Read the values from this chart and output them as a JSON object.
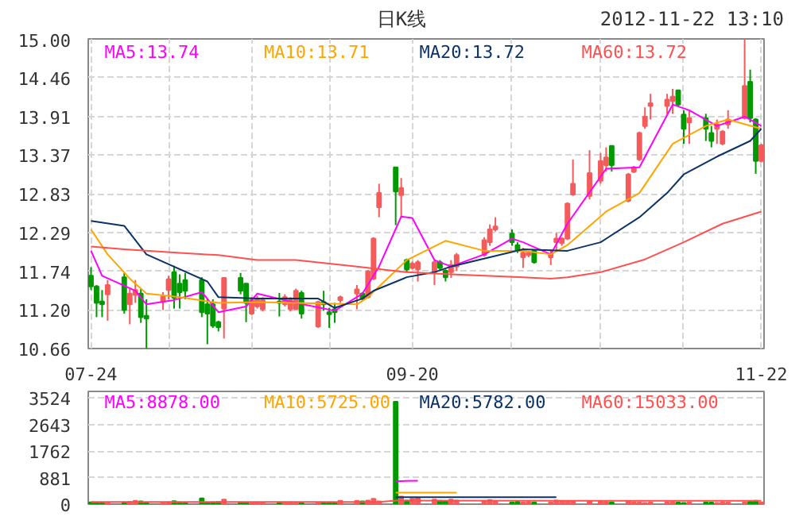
{
  "chart_data": [
    {
      "type": "candlestick",
      "title": "日K线",
      "subtitle": "2012-11-22 13:10",
      "x": [
        "2012-07-24",
        "2012-07-25",
        "2012-07-26",
        "2012-07-27",
        "2012-07-30",
        "2012-07-31",
        "2012-08-01",
        "2012-08-02",
        "2012-08-03",
        "2012-08-06",
        "2012-08-07",
        "2012-08-08",
        "2012-08-09",
        "2012-08-10",
        "2012-08-13",
        "2012-08-14",
        "2012-08-15",
        "2012-08-16",
        "2012-08-17",
        "2012-08-20",
        "2012-08-21",
        "2012-08-22",
        "2012-08-23",
        "2012-08-24",
        "2012-08-27",
        "2012-08-28",
        "2012-08-29",
        "2012-08-30",
        "2012-08-31",
        "2012-09-03",
        "2012-09-04",
        "2012-09-05",
        "2012-09-06",
        "2012-09-07",
        "2012-09-10",
        "2012-09-11",
        "2012-09-12",
        "2012-09-13",
        "2012-09-14",
        "2012-09-17",
        "2012-09-18",
        "2012-09-19",
        "2012-09-20",
        "2012-09-21",
        "2012-09-24",
        "2012-09-25",
        "2012-09-26",
        "2012-09-27",
        "2012-09-28",
        "2012-10-03",
        "2012-10-04",
        "2012-10-05",
        "2012-10-08",
        "2012-10-09",
        "2012-10-10",
        "2012-10-11",
        "2012-10-12",
        "2012-10-15",
        "2012-10-16",
        "2012-10-17",
        "2012-10-18",
        "2012-10-19",
        "2012-10-22",
        "2012-10-24",
        "2012-10-25",
        "2012-10-26",
        "2012-10-29",
        "2012-10-30",
        "2012-10-31",
        "2012-11-01",
        "2012-11-02",
        "2012-11-05",
        "2012-11-06",
        "2012-11-07",
        "2012-11-08",
        "2012-11-09",
        "2012-11-12",
        "2012-11-13",
        "2012-11-14",
        "2012-11-15",
        "2012-11-16",
        "2012-11-19",
        "2012-11-20",
        "2012-11-21",
        "2012-11-22"
      ],
      "ohlc": [
        [
          11.68,
          11.8,
          11.48,
          11.53
        ],
        [
          11.53,
          11.55,
          11.1,
          11.3
        ],
        [
          11.32,
          11.48,
          11.1,
          11.28
        ],
        [
          11.42,
          11.62,
          11.05,
          11.55
        ],
        [
          11.66,
          11.72,
          11.15,
          11.2
        ],
        [
          11.28,
          11.5,
          11.0,
          11.43
        ],
        [
          11.41,
          11.62,
          11.3,
          11.48
        ],
        [
          11.43,
          11.5,
          11.02,
          11.1
        ],
        [
          11.12,
          11.35,
          10.66,
          11.08
        ],
        [
          11.32,
          11.45,
          11.2,
          11.39
        ],
        [
          11.48,
          11.68,
          11.35,
          11.63
        ],
        [
          11.73,
          11.82,
          11.22,
          11.37
        ],
        [
          11.57,
          11.7,
          11.22,
          11.45
        ],
        [
          11.62,
          11.72,
          11.35,
          11.47
        ],
        [
          11.62,
          11.66,
          11.1,
          11.17
        ],
        [
          11.28,
          11.35,
          10.72,
          11.15
        ],
        [
          11.28,
          11.35,
          10.95,
          10.98
        ],
        [
          11.03,
          11.05,
          10.9,
          10.96
        ],
        [
          11.22,
          11.65,
          10.8,
          11.65
        ],
        [
          11.65,
          11.72,
          11.42,
          11.47
        ],
        [
          11.57,
          11.57,
          11.03,
          11.3
        ],
        [
          11.15,
          11.38,
          11.13,
          11.34
        ],
        [
          11.25,
          11.4,
          11.22,
          11.36
        ],
        [
          11.21,
          11.38,
          11.18,
          11.34
        ],
        [
          11.32,
          11.44,
          11.11,
          11.3
        ],
        [
          11.28,
          11.42,
          11.25,
          11.38
        ],
        [
          11.21,
          11.38,
          11.18,
          11.34
        ],
        [
          11.21,
          11.5,
          11.2,
          11.47
        ],
        [
          11.44,
          11.47,
          11.08,
          11.15
        ],
        [
          10.97,
          11.33,
          10.95,
          11.31
        ],
        [
          11.31,
          11.47,
          11.19,
          11.28
        ],
        [
          11.17,
          11.23,
          10.95,
          11.14
        ],
        [
          11.21,
          11.3,
          11.02,
          11.17
        ],
        [
          11.34,
          11.4,
          11.3,
          11.38
        ],
        [
          11.43,
          11.55,
          11.21,
          11.49
        ],
        [
          11.43,
          11.45,
          11.33,
          11.36
        ],
        [
          11.38,
          11.76,
          11.36,
          11.74
        ],
        [
          11.64,
          12.22,
          11.62,
          12.2
        ],
        [
          12.64,
          12.97,
          12.5,
          12.84
        ],
        [
          13.2,
          13.2,
          12.39,
          12.86
        ],
        [
          12.81,
          13.05,
          12.5,
          12.91
        ],
        [
          11.9,
          11.92,
          11.74,
          11.77
        ],
        [
          11.79,
          11.88,
          11.77,
          11.85
        ],
        [
          11.77,
          11.9,
          11.6,
          11.87
        ],
        [
          11.73,
          11.9,
          11.55,
          11.87
        ],
        [
          11.87,
          11.9,
          11.75,
          11.79
        ],
        [
          11.75,
          11.77,
          11.6,
          11.66
        ],
        [
          11.73,
          11.9,
          11.65,
          11.83
        ],
        [
          11.81,
          12.0,
          11.75,
          11.97
        ],
        [
          11.97,
          12.22,
          11.95,
          12.18
        ],
        [
          12.15,
          12.4,
          12.1,
          12.33
        ],
        [
          12.33,
          12.5,
          12.3,
          12.37
        ],
        [
          12.27,
          12.33,
          12.1,
          12.15
        ],
        [
          12.11,
          12.15,
          12.0,
          12.03
        ],
        [
          11.94,
          12.07,
          11.79,
          12.0
        ],
        [
          11.97,
          12.03,
          11.94,
          12.0
        ],
        [
          12.03,
          12.05,
          11.85,
          11.87
        ],
        [
          11.94,
          12.05,
          11.83,
          11.98
        ],
        [
          12.15,
          12.28,
          12.03,
          12.2
        ],
        [
          12.14,
          12.22,
          12.1,
          12.2
        ],
        [
          12.2,
          12.71,
          12.18,
          12.69
        ],
        [
          12.82,
          13.31,
          12.8,
          12.97
        ],
        [
          12.8,
          13.44,
          12.75,
          13.12
        ],
        [
          13.01,
          13.4,
          12.97,
          13.29
        ],
        [
          13.23,
          13.48,
          13.14,
          13.34
        ],
        [
          13.5,
          13.5,
          13.14,
          13.23
        ],
        [
          12.73,
          13.12,
          12.71,
          13.1
        ],
        [
          13.14,
          13.22,
          13.12,
          13.2
        ],
        [
          13.31,
          13.7,
          13.29,
          13.68
        ],
        [
          13.78,
          14.04,
          13.74,
          13.91
        ],
        [
          14.06,
          14.23,
          13.87,
          14.1
        ],
        [
          14.06,
          14.23,
          13.95,
          14.15
        ],
        [
          14.13,
          14.3,
          13.95,
          14.19
        ],
        [
          14.28,
          14.28,
          14.06,
          14.08
        ],
        [
          13.94,
          14.0,
          13.53,
          13.74
        ],
        [
          13.83,
          14.0,
          13.53,
          13.89
        ],
        [
          13.89,
          13.95,
          13.57,
          13.74
        ],
        [
          13.68,
          13.78,
          13.48,
          13.57
        ],
        [
          13.74,
          13.87,
          13.53,
          13.8
        ],
        [
          13.53,
          13.72,
          13.51,
          13.7
        ],
        [
          13.8,
          14.0,
          13.74,
          13.87
        ],
        [
          13.89,
          15.0,
          13.87,
          14.34
        ],
        [
          14.4,
          14.57,
          13.83,
          13.89
        ],
        [
          13.87,
          13.89,
          13.11,
          13.29
        ],
        [
          13.29,
          13.53,
          13.27,
          13.51
        ]
      ],
      "colors": [
        "#009900",
        "#009900",
        "#009900",
        "#f65b5b",
        "#009900",
        "#f65b5b",
        "#f65b5b",
        "#009900",
        "#009900",
        "#f65b5b",
        "#f65b5b",
        "#009900",
        "#009900",
        "#009900",
        "#009900",
        "#009900",
        "#009900",
        "#009900",
        "#f65b5b",
        "#009900",
        "#009900",
        "#f65b5b",
        "#f65b5b",
        "#f65b5b",
        "#009900",
        "#f65b5b",
        "#f65b5b",
        "#f65b5b",
        "#009900",
        "#f65b5b",
        "#009900",
        "#009900",
        "#009900",
        "#f65b5b",
        "#f65b5b",
        "#009900",
        "#f65b5b",
        "#f65b5b",
        "#f65b5b",
        "#009900",
        "#f65b5b",
        "#009900",
        "#f65b5b",
        "#f65b5b",
        "#f65b5b",
        "#009900",
        "#009900",
        "#f65b5b",
        "#f65b5b",
        "#f65b5b",
        "#f65b5b",
        "#f65b5b",
        "#009900",
        "#009900",
        "#f65b5b",
        "#f65b5b",
        "#009900",
        "#f65b5b",
        "#f65b5b",
        "#f65b5b",
        "#f65b5b",
        "#f65b5b",
        "#f65b5b",
        "#f65b5b",
        "#f65b5b",
        "#009900",
        "#f65b5b",
        "#f65b5b",
        "#f65b5b",
        "#f65b5b",
        "#f65b5b",
        "#f65b5b",
        "#f65b5b",
        "#009900",
        "#009900",
        "#f65b5b",
        "#009900",
        "#009900",
        "#f65b5b",
        "#f65b5b",
        "#f65b5b",
        "#f65b5b",
        "#009900",
        "#009900",
        "#f65b5b"
      ],
      "xlim": [
        "2012-07-23T12:00",
        "2012-11-22T12:00"
      ],
      "xticks": [
        {
          "value": "2012-07-24",
          "label": "07-24"
        },
        {
          "value": "2012-08-07",
          "label": null
        },
        {
          "value": "2012-08-22",
          "label": null
        },
        {
          "value": "2012-09-05",
          "label": null
        },
        {
          "value": "2012-09-20",
          "label": "09-20"
        },
        {
          "value": "2012-10-08",
          "label": null
        },
        {
          "value": "2012-10-24",
          "label": null
        },
        {
          "value": "2012-11-08",
          "label": null
        },
        {
          "value": "2012-11-22",
          "label": "11-22"
        }
      ],
      "ylim": [
        10.66,
        15.0
      ],
      "yticks": [
        10.66,
        {
          "value": 11.2,
          "label": "11.20"
        },
        11.74,
        12.29,
        12.83,
        13.37,
        13.91,
        14.46,
        {
          "value": 15.0,
          "label": "15.00"
        }
      ],
      "grid": true,
      "legend": "top",
      "series": [
        {
          "name": "MA5:13.74",
          "type": "line",
          "color": "#ff00ff",
          "x": [
            "2012-07-24",
            "2012-07-26",
            "2012-08-01",
            "2012-08-03",
            "2012-08-08",
            "2012-08-13",
            "2012-08-16",
            "2012-08-21",
            "2012-08-23",
            "2012-08-30",
            "2012-09-06",
            "2012-09-11",
            "2012-09-14",
            "2012-09-18",
            "2012-09-20",
            "2012-09-24",
            "2012-09-27",
            "2012-10-03",
            "2012-10-08",
            "2012-10-10",
            "2012-10-15",
            "2012-10-18",
            "2012-10-25",
            "2012-10-31",
            "2012-11-06",
            "2012-11-09",
            "2012-11-14",
            "2012-11-19",
            "2012-11-22"
          ],
          "values": [
            12.03,
            11.68,
            11.47,
            11.28,
            11.34,
            11.45,
            11.17,
            11.25,
            11.43,
            11.3,
            11.19,
            11.43,
            11.81,
            12.51,
            12.49,
            11.9,
            11.81,
            11.98,
            12.2,
            12.15,
            11.98,
            12.41,
            13.18,
            13.2,
            14.08,
            14.0,
            13.78,
            13.91,
            13.78
          ]
        },
        {
          "name": "MA10:13.71",
          "type": "line",
          "color": "#ffa500",
          "x": [
            "2012-07-24",
            "2012-07-27",
            "2012-07-31",
            "2012-08-03",
            "2012-08-09",
            "2012-08-16",
            "2012-08-23",
            "2012-08-30",
            "2012-09-10",
            "2012-09-12",
            "2012-09-19",
            "2012-09-26",
            "2012-10-03",
            "2012-10-10",
            "2012-10-15",
            "2012-10-18",
            "2012-10-25",
            "2012-10-31",
            "2012-11-06",
            "2012-11-12",
            "2012-11-16",
            "2012-11-22"
          ],
          "values": [
            12.33,
            11.98,
            11.64,
            11.43,
            11.38,
            11.3,
            11.31,
            11.3,
            11.28,
            11.38,
            11.9,
            12.17,
            12.03,
            12.03,
            11.98,
            12.11,
            12.58,
            12.84,
            13.53,
            13.78,
            13.87,
            13.74
          ]
        },
        {
          "name": "MA20:13.72",
          "type": "line",
          "color": "#0b3366",
          "x": [
            "2012-07-24",
            "2012-07-30",
            "2012-08-03",
            "2012-08-14",
            "2012-08-16",
            "2012-08-23",
            "2012-09-03",
            "2012-09-06",
            "2012-09-11",
            "2012-09-13",
            "2012-09-19",
            "2012-09-24",
            "2012-09-27",
            "2012-10-04",
            "2012-10-10",
            "2012-10-18",
            "2012-10-24",
            "2012-10-31",
            "2012-11-05",
            "2012-11-08",
            "2012-11-14",
            "2012-11-20",
            "2012-11-22"
          ],
          "values": [
            12.45,
            12.38,
            11.98,
            11.6,
            11.38,
            11.36,
            11.36,
            11.23,
            11.36,
            11.47,
            11.66,
            11.73,
            11.81,
            11.94,
            12.05,
            12.03,
            12.15,
            12.5,
            12.84,
            13.1,
            13.35,
            13.57,
            13.74
          ]
        },
        {
          "name": "MA60:13.72",
          "type": "line",
          "color": "#ff5050",
          "x": [
            "2012-07-24",
            "2012-07-30",
            "2012-08-09",
            "2012-08-16",
            "2012-08-23",
            "2012-08-30",
            "2012-09-10",
            "2012-09-19",
            "2012-09-27",
            "2012-10-10",
            "2012-10-15",
            "2012-10-18",
            "2012-10-24",
            "2012-11-01",
            "2012-11-08",
            "2012-11-15",
            "2012-11-22"
          ],
          "values": [
            12.09,
            12.05,
            12.0,
            11.97,
            11.9,
            11.9,
            11.81,
            11.73,
            11.7,
            11.66,
            11.64,
            11.66,
            11.73,
            11.91,
            12.15,
            12.41,
            12.58
          ]
        }
      ]
    },
    {
      "type": "bar",
      "x": [
        "2012-07-24",
        "2012-07-25",
        "2012-07-26",
        "2012-07-27",
        "2012-07-30",
        "2012-07-31",
        "2012-08-01",
        "2012-08-02",
        "2012-08-03",
        "2012-08-06",
        "2012-08-07",
        "2012-08-08",
        "2012-08-09",
        "2012-08-10",
        "2012-08-13",
        "2012-08-14",
        "2012-08-15",
        "2012-08-16",
        "2012-08-17",
        "2012-08-20",
        "2012-08-21",
        "2012-08-22",
        "2012-08-23",
        "2012-08-24",
        "2012-08-27",
        "2012-08-28",
        "2012-08-29",
        "2012-08-30",
        "2012-08-31",
        "2012-09-03",
        "2012-09-04",
        "2012-09-05",
        "2012-09-06",
        "2012-09-07",
        "2012-09-10",
        "2012-09-11",
        "2012-09-12",
        "2012-09-13",
        "2012-09-14",
        "2012-09-17",
        "2012-09-18",
        "2012-09-19",
        "2012-09-20",
        "2012-09-21",
        "2012-09-24",
        "2012-09-25",
        "2012-09-26",
        "2012-09-27",
        "2012-09-28",
        "2012-10-03",
        "2012-10-04",
        "2012-10-05",
        "2012-10-08",
        "2012-10-09",
        "2012-10-10",
        "2012-10-11",
        "2012-10-12",
        "2012-10-15",
        "2012-10-16",
        "2012-10-17",
        "2012-10-18",
        "2012-10-19",
        "2012-10-22",
        "2012-10-24",
        "2012-10-25",
        "2012-10-26",
        "2012-10-29",
        "2012-10-30",
        "2012-10-31",
        "2012-11-01",
        "2012-11-02",
        "2012-11-05",
        "2012-11-06",
        "2012-11-07",
        "2012-11-08",
        "2012-11-09",
        "2012-11-12",
        "2012-11-13",
        "2012-11-14",
        "2012-11-15",
        "2012-11-16",
        "2012-11-19",
        "2012-11-20",
        "2012-11-21",
        "2012-11-22"
      ],
      "values": [
        60,
        50,
        40,
        50,
        60,
        70,
        110,
        90,
        50,
        40,
        60,
        100,
        60,
        50,
        190,
        50,
        60,
        70,
        150,
        60,
        50,
        40,
        50,
        40,
        60,
        50,
        60,
        40,
        50,
        50,
        40,
        50,
        40,
        110,
        110,
        90,
        120,
        180,
        90,
        3400,
        250,
        120,
        180,
        200,
        150,
        110,
        100,
        150,
        120,
        100,
        140,
        80,
        60,
        80,
        60,
        70,
        60,
        60,
        120,
        80,
        100,
        80,
        100,
        90,
        70,
        60,
        80,
        60,
        50,
        40,
        50,
        60,
        70,
        50,
        40,
        60,
        60,
        50,
        40,
        60,
        50,
        60,
        80,
        110,
        60
      ],
      "colors": [
        "#009900",
        "#009900",
        "#009900",
        "#f65b5b",
        "#009900",
        "#f65b5b",
        "#f65b5b",
        "#009900",
        "#009900",
        "#f65b5b",
        "#f65b5b",
        "#009900",
        "#009900",
        "#009900",
        "#009900",
        "#009900",
        "#009900",
        "#009900",
        "#f65b5b",
        "#009900",
        "#009900",
        "#f65b5b",
        "#f65b5b",
        "#f65b5b",
        "#009900",
        "#f65b5b",
        "#f65b5b",
        "#f65b5b",
        "#009900",
        "#f65b5b",
        "#009900",
        "#009900",
        "#009900",
        "#f65b5b",
        "#f65b5b",
        "#009900",
        "#f65b5b",
        "#f65b5b",
        "#f65b5b",
        "#009900",
        "#f65b5b",
        "#009900",
        "#f65b5b",
        "#f65b5b",
        "#f65b5b",
        "#009900",
        "#009900",
        "#f65b5b",
        "#f65b5b",
        "#f65b5b",
        "#f65b5b",
        "#f65b5b",
        "#009900",
        "#009900",
        "#f65b5b",
        "#f65b5b",
        "#009900",
        "#f65b5b",
        "#f65b5b",
        "#f65b5b",
        "#f65b5b",
        "#f65b5b",
        "#f65b5b",
        "#f65b5b",
        "#f65b5b",
        "#009900",
        "#f65b5b",
        "#f65b5b",
        "#f65b5b",
        "#f65b5b",
        "#f65b5b",
        "#f65b5b",
        "#f65b5b",
        "#009900",
        "#009900",
        "#f65b5b",
        "#009900",
        "#009900",
        "#f65b5b",
        "#f65b5b",
        "#f65b5b",
        "#f65b5b",
        "#009900",
        "#009900",
        "#f65b5b"
      ],
      "xlim": [
        "2012-07-23T12:00",
        "2012-11-22T12:00"
      ],
      "ylim": [
        0,
        3740
      ],
      "yticks": [
        0,
        881,
        1762,
        2643,
        3524
      ],
      "tick_labels": "y",
      "grid": "y",
      "legend": "top",
      "series": [
        {
          "name": "MA5:8878.00",
          "type": "line",
          "color": "#ff00ff",
          "x": [
            "2012-09-17",
            "2012-09-21"
          ],
          "values": [
            760,
            780
          ]
        },
        {
          "name": "MA10:5725.00",
          "type": "line",
          "color": "#ffa500",
          "x": [
            "2012-09-17",
            "2012-09-28"
          ],
          "values": [
            380,
            380
          ]
        },
        {
          "name": "MA20:5782.00",
          "type": "line",
          "color": "#0b3366",
          "x": [
            "2012-09-17",
            "2012-10-16"
          ],
          "values": [
            230,
            230
          ]
        },
        {
          "name": "MA60:15033.00",
          "type": "line",
          "color": "#ff5050",
          "x": [
            "2012-07-24",
            "2012-09-14",
            "2012-09-17",
            "2012-11-22"
          ],
          "values": [
            70,
            70,
            120,
            110
          ]
        }
      ]
    }
  ]
}
